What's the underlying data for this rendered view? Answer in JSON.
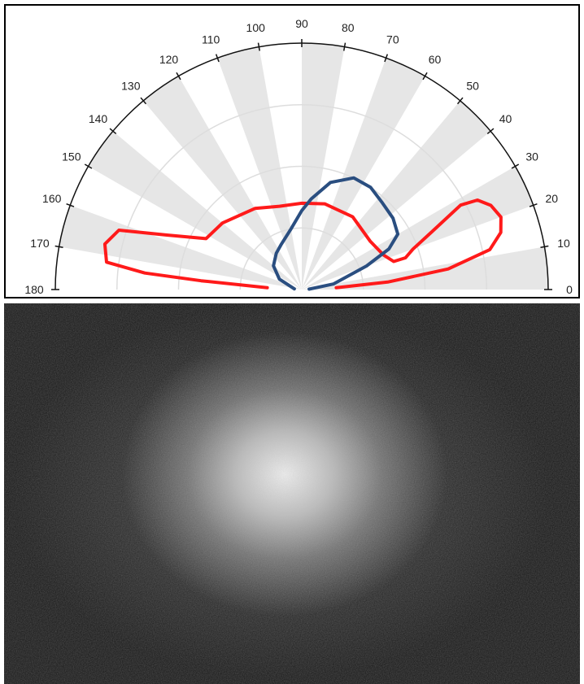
{
  "chart_data": {
    "type": "polar",
    "angular_axis": {
      "range_deg": [
        0,
        180
      ],
      "tick_step_deg": 10,
      "tick_labels": [
        "0",
        "10",
        "20",
        "30",
        "40",
        "50",
        "60",
        "70",
        "80",
        "90",
        "100",
        "110",
        "120",
        "130",
        "140",
        "150",
        "160",
        "170",
        "180"
      ],
      "alternating_sector_shading": true,
      "shade_color": "#e6e6e6"
    },
    "radial_axis": {
      "range": [
        0,
        1
      ],
      "grid_rings": [
        0.25,
        0.5,
        0.75,
        1.0
      ],
      "ring_color": "#dddddd"
    },
    "series": [
      {
        "color": "#ff1a1a",
        "points": [
          {
            "theta": 3,
            "r": 0.14
          },
          {
            "theta": 5,
            "r": 0.35
          },
          {
            "theta": 8,
            "r": 0.6
          },
          {
            "theta": 12,
            "r": 0.78
          },
          {
            "theta": 16,
            "r": 0.84
          },
          {
            "theta": 20,
            "r": 0.86
          },
          {
            "theta": 24,
            "r": 0.84
          },
          {
            "theta": 27,
            "r": 0.8
          },
          {
            "theta": 28,
            "r": 0.73
          },
          {
            "theta": 24,
            "r": 0.58
          },
          {
            "theta": 20,
            "r": 0.48
          },
          {
            "theta": 17,
            "r": 0.44
          },
          {
            "theta": 17,
            "r": 0.39
          },
          {
            "theta": 23,
            "r": 0.36
          },
          {
            "theta": 35,
            "r": 0.34
          },
          {
            "theta": 55,
            "r": 0.36
          },
          {
            "theta": 75,
            "r": 0.36
          },
          {
            "theta": 90,
            "r": 0.35
          },
          {
            "theta": 105,
            "r": 0.35
          },
          {
            "theta": 120,
            "r": 0.38
          },
          {
            "theta": 140,
            "r": 0.42
          },
          {
            "theta": 152,
            "r": 0.44
          },
          {
            "theta": 158,
            "r": 0.59
          },
          {
            "theta": 162,
            "r": 0.78
          },
          {
            "theta": 167,
            "r": 0.82
          },
          {
            "theta": 172,
            "r": 0.8
          },
          {
            "theta": 174,
            "r": 0.64
          },
          {
            "theta": 175,
            "r": 0.41
          },
          {
            "theta": 177,
            "r": 0.14
          }
        ]
      },
      {
        "color": "#2a4e80",
        "points": [
          {
            "theta": 3,
            "r": 0.03
          },
          {
            "theta": 10,
            "r": 0.13
          },
          {
            "theta": 20,
            "r": 0.28
          },
          {
            "theta": 25,
            "r": 0.39
          },
          {
            "theta": 30,
            "r": 0.45
          },
          {
            "theta": 38,
            "r": 0.47
          },
          {
            "theta": 47,
            "r": 0.48
          },
          {
            "theta": 56,
            "r": 0.5
          },
          {
            "theta": 65,
            "r": 0.5
          },
          {
            "theta": 75,
            "r": 0.45
          },
          {
            "theta": 84,
            "r": 0.37
          },
          {
            "theta": 90,
            "r": 0.32
          },
          {
            "theta": 100,
            "r": 0.25
          },
          {
            "theta": 115,
            "r": 0.2
          },
          {
            "theta": 125,
            "r": 0.18
          },
          {
            "theta": 140,
            "r": 0.15
          },
          {
            "theta": 155,
            "r": 0.1
          },
          {
            "theta": 175,
            "r": 0.03
          }
        ]
      }
    ]
  },
  "photo": {
    "background_color": "#141414",
    "glow_color": "#ffffff"
  }
}
